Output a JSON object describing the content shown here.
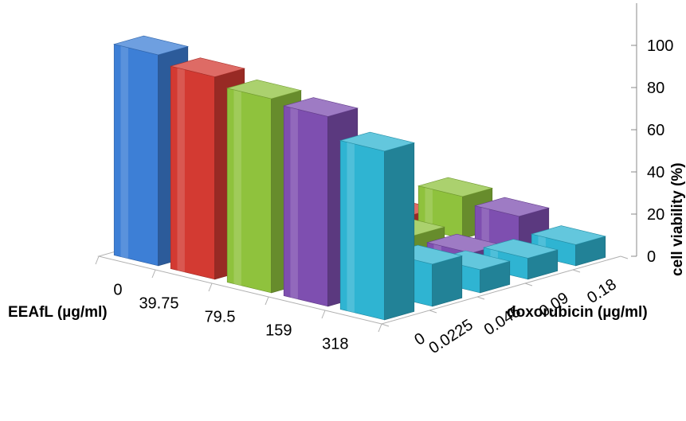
{
  "chart_data": {
    "type": "bar3d",
    "title": "",
    "x_axis": {
      "label": "EEAfL (µg/ml)",
      "categories": [
        "0",
        "39.75",
        "79.5",
        "159",
        "318"
      ]
    },
    "z_axis": {
      "label": "doxorubicin (µg/ml)",
      "categories": [
        "0",
        "0.0225",
        "0.045",
        "0.09",
        "0.18"
      ]
    },
    "y_axis": {
      "label": "cell viability (%)",
      "ticks": [
        "0",
        "20",
        "40",
        "60",
        "80",
        "100"
      ],
      "ylim": [
        0,
        120
      ]
    },
    "series": [
      {
        "color": "#3d7fd6",
        "values": [
          100,
          22,
          5,
          3,
          2
        ]
      },
      {
        "color": "#d33a32",
        "values": [
          96,
          20,
          10,
          5,
          4
        ]
      },
      {
        "color": "#8fc23d",
        "values": [
          92,
          18,
          6,
          8,
          20
        ]
      },
      {
        "color": "#7e4fb0",
        "values": [
          90,
          22,
          7,
          6,
          17
        ]
      },
      {
        "color": "#2fb4d2",
        "values": [
          80,
          20,
          11,
          10,
          10
        ]
      }
    ],
    "legend": "none",
    "grid": false
  }
}
